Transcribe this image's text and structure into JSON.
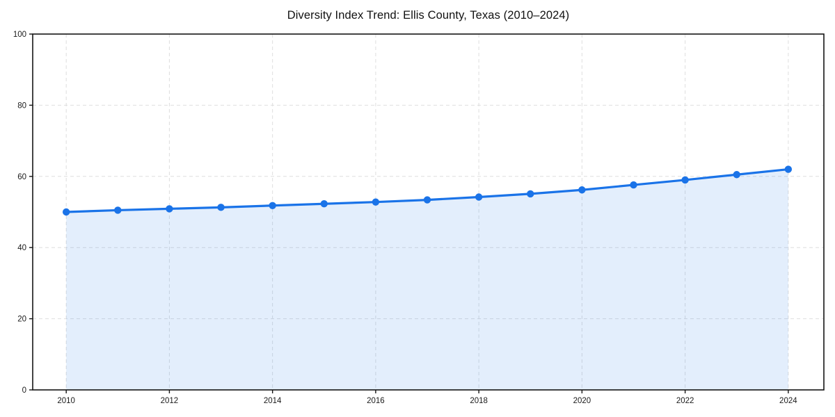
{
  "title": "Diversity Index Trend: Ellis County, Texas (2010–2024)",
  "chart_data": {
    "type": "area",
    "title": "Diversity Index Trend: Ellis County, Texas (2010–2024)",
    "x": [
      2010,
      2011,
      2012,
      2013,
      2014,
      2015,
      2016,
      2017,
      2018,
      2019,
      2020,
      2021,
      2022,
      2023,
      2024
    ],
    "series": [
      {
        "name": "Diversity Index",
        "values": [
          50.0,
          50.5,
          50.9,
          51.3,
          51.8,
          52.3,
          52.8,
          53.4,
          54.2,
          55.1,
          56.2,
          57.6,
          59.0,
          60.5,
          62.0
        ]
      }
    ],
    "xlabel": "",
    "ylabel": "",
    "xlim": [
      2009.35,
      2024.69
    ],
    "ylim": [
      0,
      100
    ],
    "xticks": [
      2010,
      2012,
      2014,
      2016,
      2018,
      2020,
      2022,
      2024
    ],
    "yticks": [
      0,
      20,
      40,
      60,
      80,
      100
    ],
    "grid": true,
    "grid_style": "dashed",
    "legend": false,
    "marker": "circle",
    "colors": {
      "line": "#1a73e8",
      "fill": "#1a73e8",
      "fill_opacity": 0.12,
      "grid": "#dedede",
      "spine": "#141414",
      "tick_label": "#1a1a1a",
      "title": "#111111",
      "background": "#ffffff"
    }
  }
}
